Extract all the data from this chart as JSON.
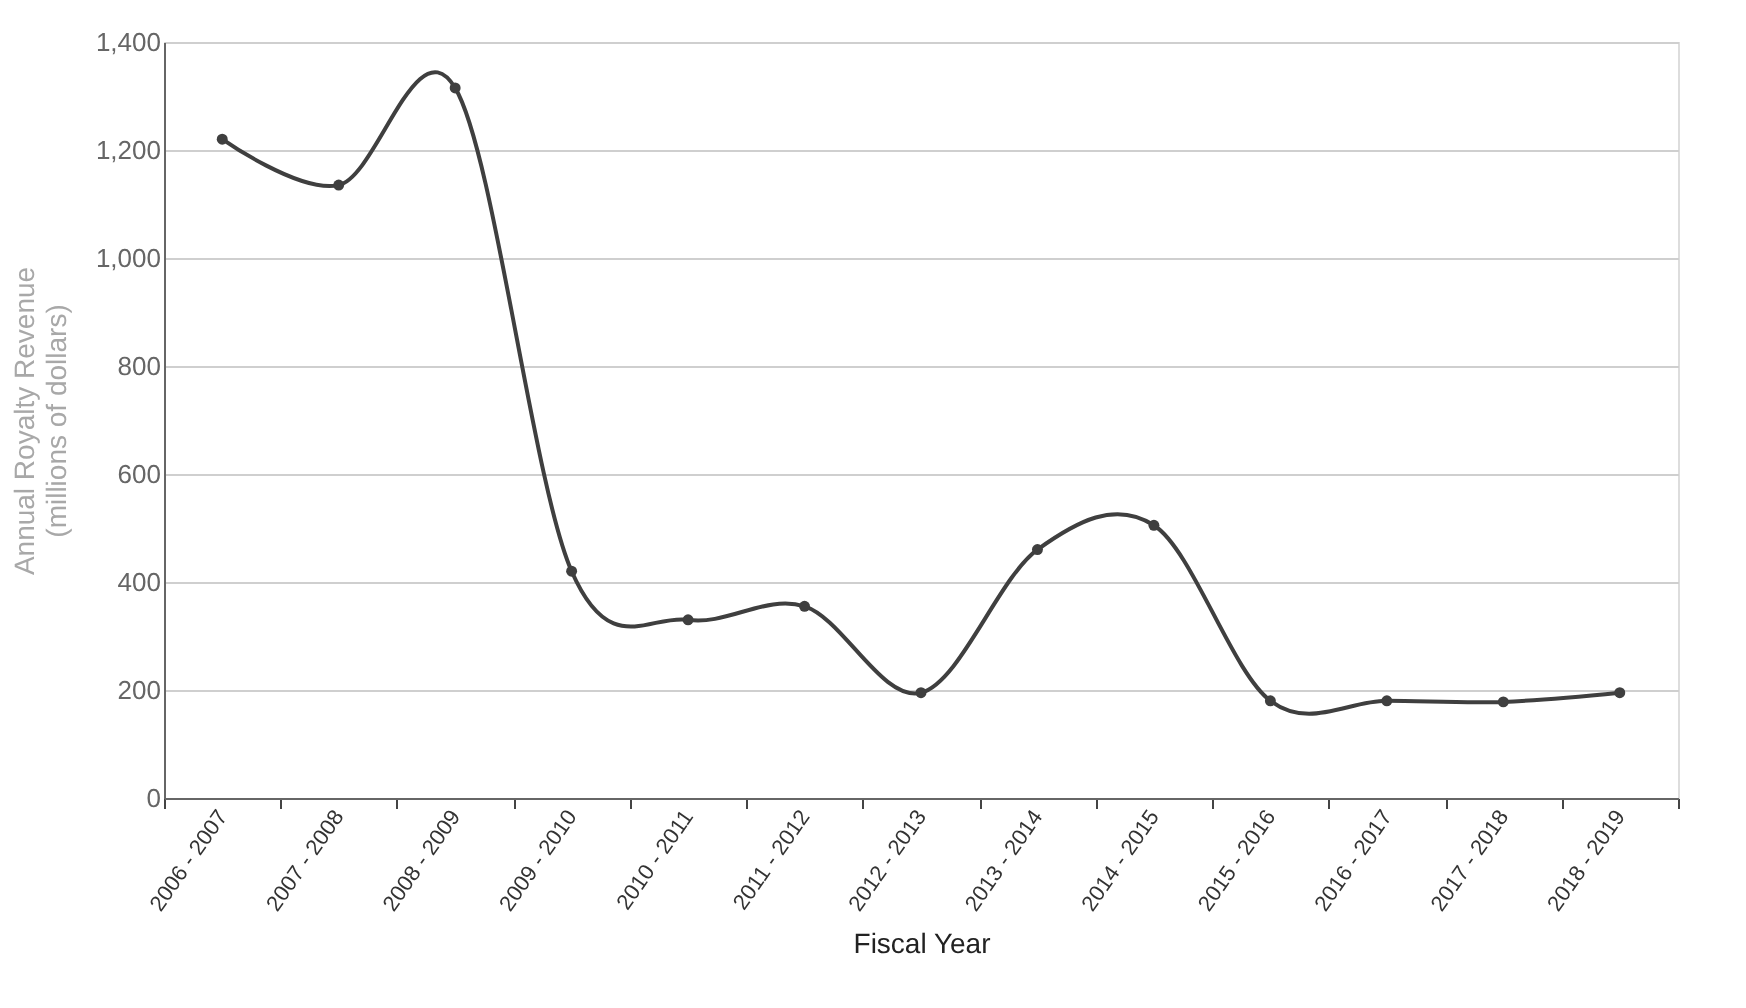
{
  "chart_data": {
    "type": "line",
    "xlabel": "Fiscal Year",
    "ylabel": "Annual Royalty Revenue\n(millions of dollars)",
    "categories": [
      "2006 - 2007",
      "2007 - 2008",
      "2008 - 2009",
      "2009 - 2010",
      "2010 - 2011",
      "2011 - 2012",
      "2012 - 2013",
      "2013 - 2014",
      "2014 - 2015",
      "2015 - 2016",
      "2016 - 2017",
      "2017 - 2018",
      "2018 - 2019"
    ],
    "series": [
      {
        "color": "#3f3f3f",
        "values": [
          1220,
          1135,
          1315,
          420,
          330,
          355,
          195,
          460,
          505,
          180,
          180,
          178,
          195
        ]
      }
    ],
    "ylim": [
      0,
      1400
    ],
    "yticks": [
      0,
      200,
      400,
      600,
      800,
      {
        "value": 1000,
        "label": "1,000"
      },
      {
        "value": 1200,
        "label": "1,200"
      },
      {
        "value": 1400,
        "label": "1,400"
      }
    ],
    "grid": "y",
    "marker": "circle",
    "line_style": "solid",
    "legend": false
  }
}
